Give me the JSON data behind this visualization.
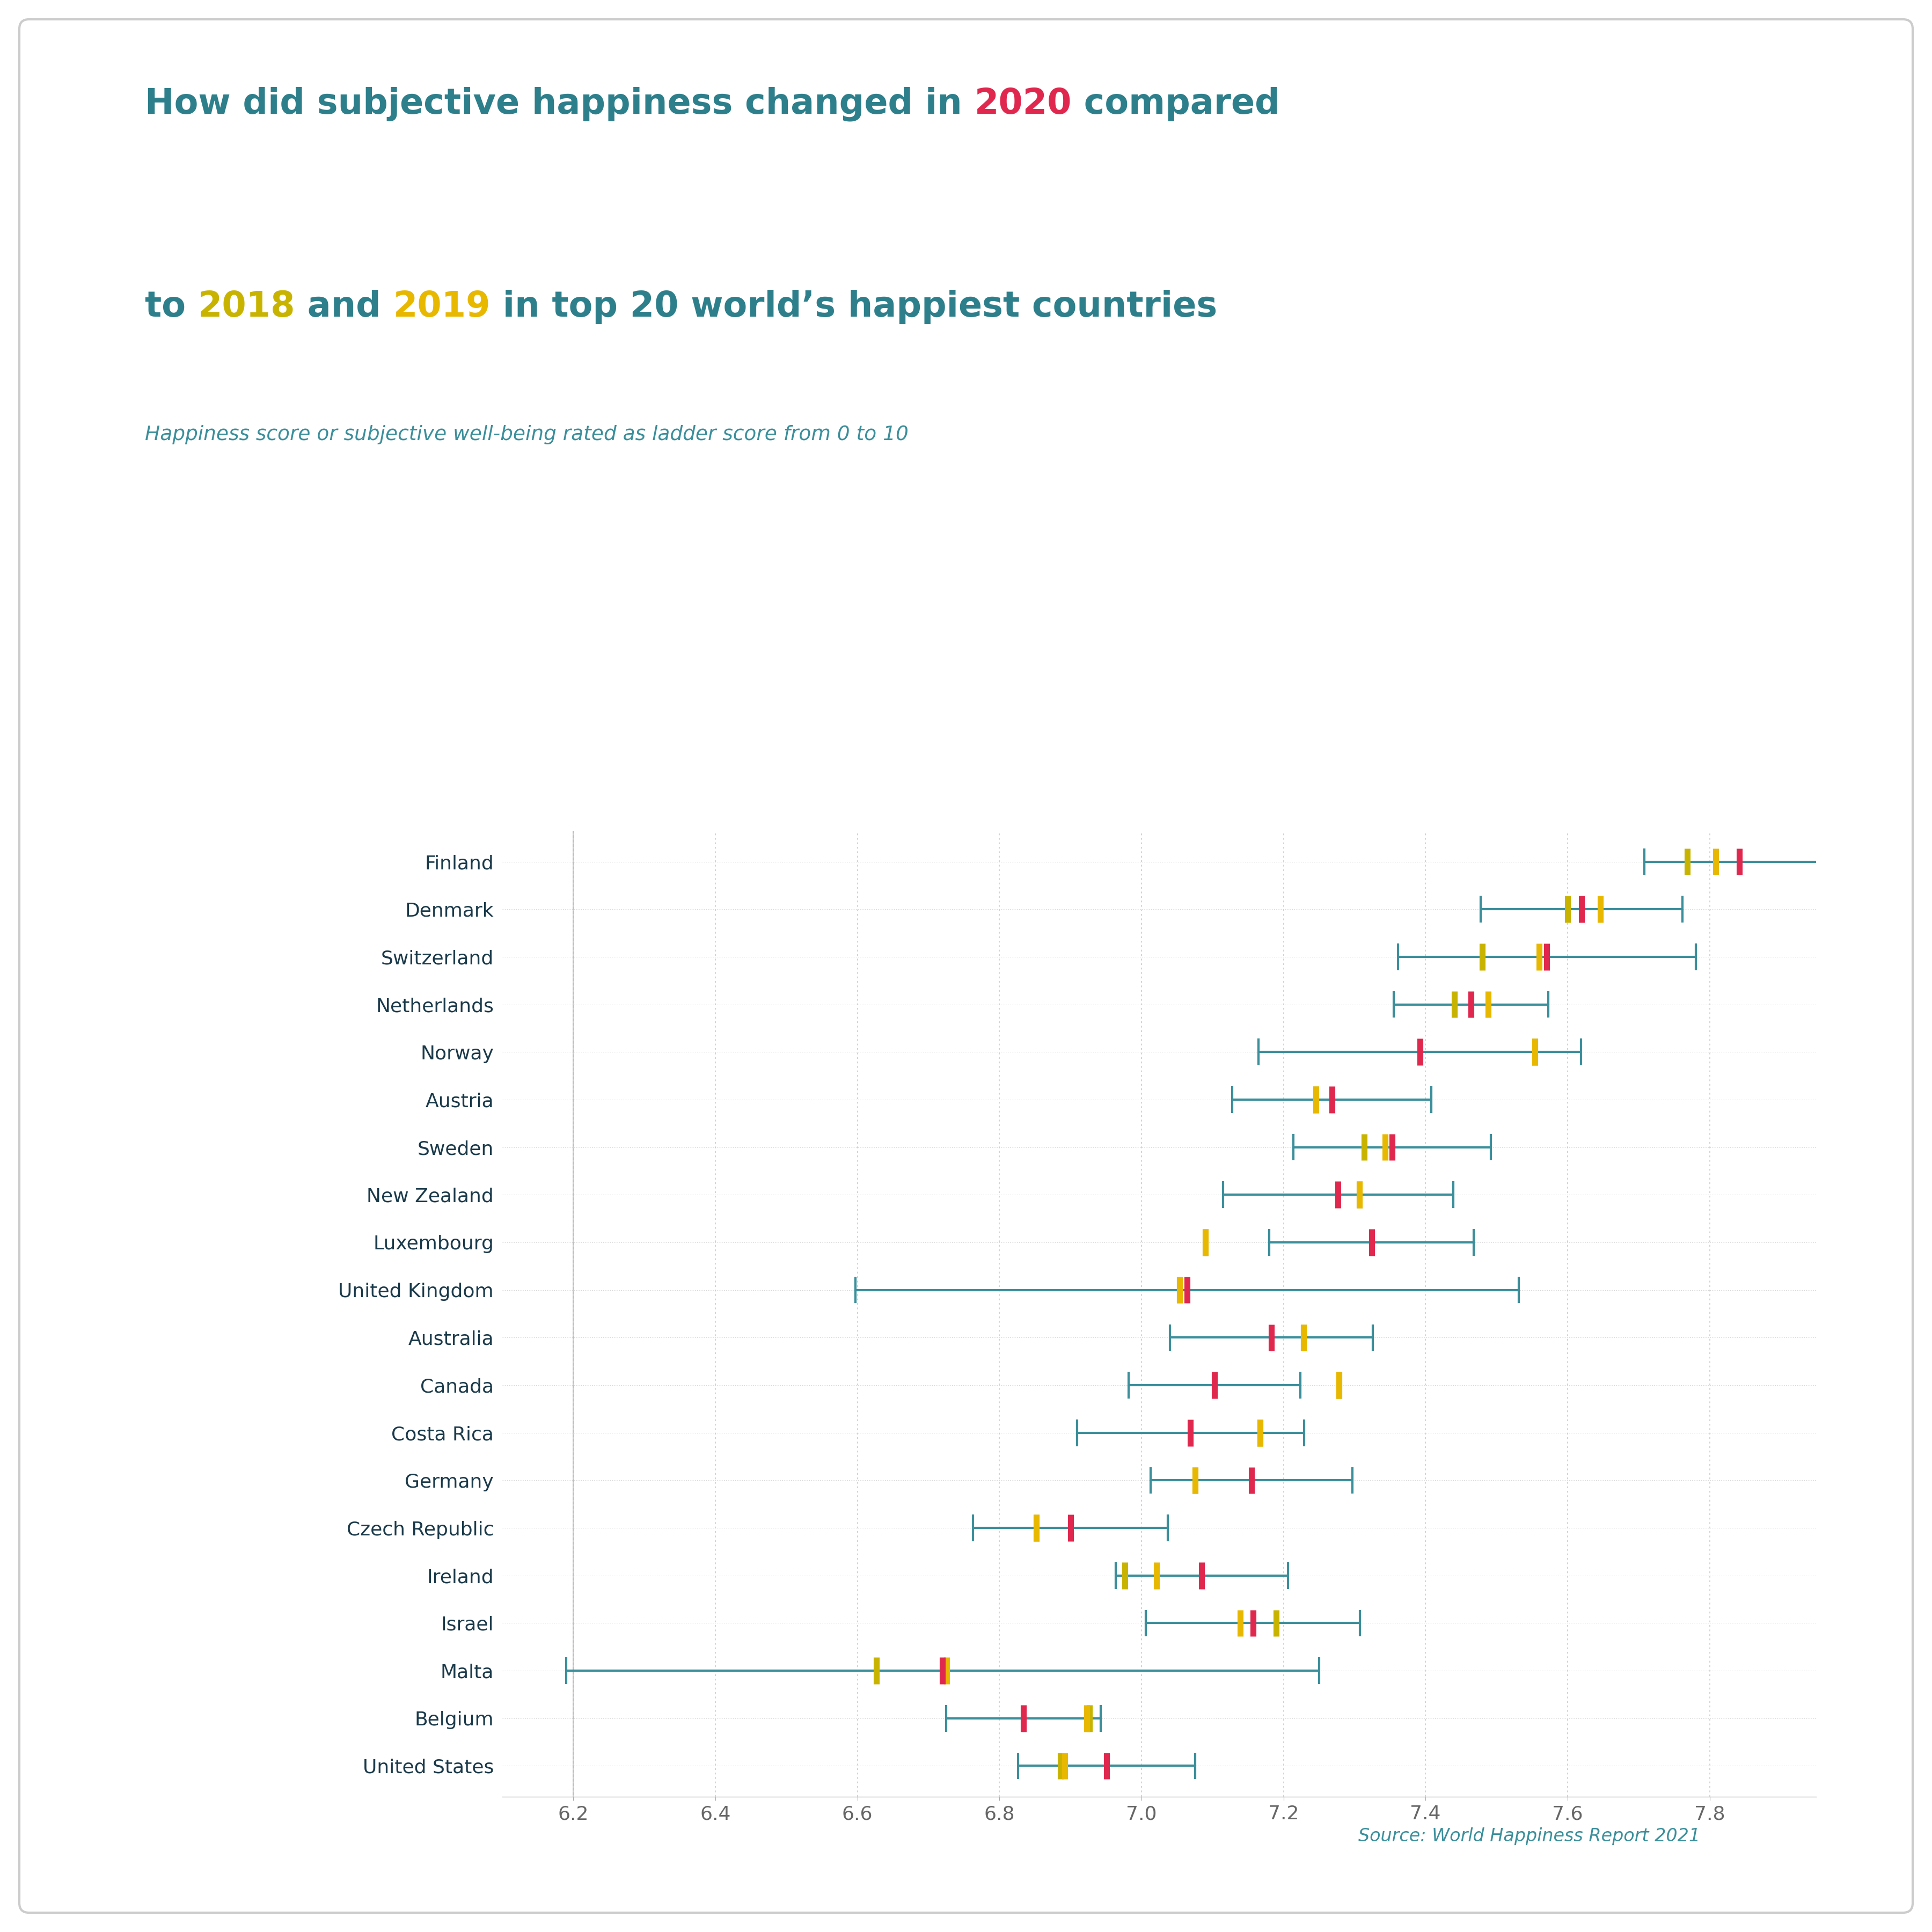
{
  "subtitle": "Happiness score or subjective well-being rated as ladder score from 0 to 10",
  "source": "Source: World Happiness Report 2021",
  "background_color": "#ffffff",
  "countries": [
    "Finland",
    "Denmark",
    "Switzerland",
    "Netherlands",
    "Norway",
    "Austria",
    "Sweden",
    "New Zealand",
    "Luxembourg",
    "United Kingdom",
    "Australia",
    "Canada",
    "Costa Rica",
    "Germany",
    "Czech Republic",
    "Ireland",
    "Israel",
    "Malta",
    "Belgium",
    "United States"
  ],
  "data_2018": [
    7.769,
    7.6,
    7.48,
    7.441,
    7.554,
    7.246,
    7.314,
    7.307,
    7.09,
    7.054,
    7.228,
    7.278,
    7.167,
    7.076,
    6.852,
    6.977,
    7.19,
    6.627,
    6.927,
    6.886
  ],
  "data_2019": [
    7.809,
    7.646,
    7.56,
    7.488,
    7.554,
    7.246,
    7.343,
    7.307,
    7.09,
    7.054,
    7.228,
    7.278,
    7.167,
    7.076,
    6.852,
    7.021,
    7.139,
    6.726,
    6.923,
    6.892
  ],
  "data_2020": [
    7.842,
    7.62,
    7.571,
    7.464,
    7.392,
    7.268,
    7.353,
    7.277,
    7.324,
    7.064,
    7.183,
    7.103,
    7.069,
    7.155,
    6.9,
    7.085,
    7.157,
    6.72,
    6.834,
    6.951
  ],
  "ci_low_2020": [
    7.708,
    7.478,
    7.361,
    7.355,
    7.165,
    7.128,
    7.214,
    7.115,
    7.18,
    6.597,
    7.04,
    6.982,
    6.909,
    7.013,
    6.763,
    6.964,
    7.006,
    6.19,
    6.725,
    6.826
  ],
  "ci_high_2020": [
    7.976,
    7.762,
    7.781,
    7.573,
    7.619,
    7.408,
    7.492,
    7.439,
    7.468,
    7.531,
    7.326,
    7.224,
    7.229,
    7.297,
    7.037,
    7.206,
    7.308,
    7.25,
    6.943,
    7.076
  ],
  "color_2018": "#c8b400",
  "color_2019": "#e8b800",
  "color_2020": "#e0284f",
  "color_ci": "#3a8f9b",
  "xlim": [
    6.1,
    7.95
  ],
  "xticks": [
    6.2,
    6.4,
    6.6,
    6.8,
    7.0,
    7.2,
    7.4,
    7.6,
    7.8
  ],
  "country_color": "#1a3a4a",
  "title_color": "#2d7f8b",
  "subtitle_color": "#3a8f9b",
  "source_color": "#3a8f9b",
  "grid_color": "#cccccc",
  "border_color": "#cccccc"
}
